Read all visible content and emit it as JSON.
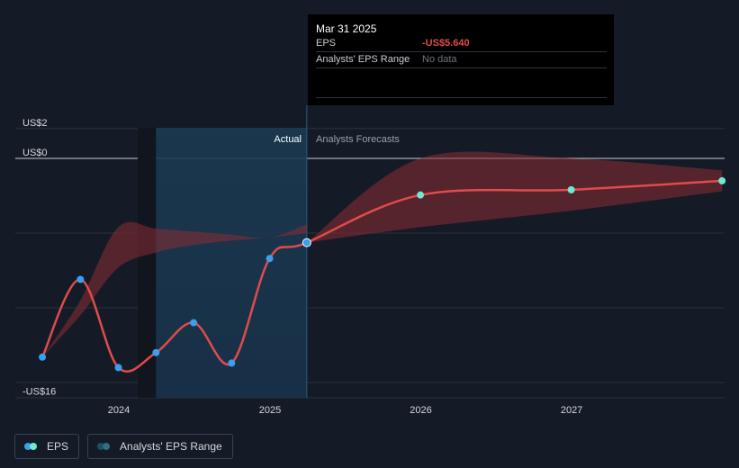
{
  "chart_data": {
    "type": "line",
    "y_axis": {
      "ylim": [
        -16,
        2
      ],
      "tick_labels": [
        {
          "value": 2,
          "label": "US$2"
        },
        {
          "value": 0,
          "label": "US$0"
        },
        {
          "value": -16,
          "label": "-US$16"
        }
      ],
      "gridlines": [
        2,
        0,
        -5,
        -10,
        -15
      ]
    },
    "x_axis": {
      "xlim": [
        "2023-07-01",
        "2027-12-31"
      ],
      "tick_labels": [
        {
          "value": "2024-01-01",
          "label": "2024"
        },
        {
          "value": "2025-01-01",
          "label": "2025"
        },
        {
          "value": "2026-01-01",
          "label": "2026"
        },
        {
          "value": "2027-01-01",
          "label": "2027"
        }
      ]
    },
    "regions": {
      "actual_label": "Actual",
      "forecast_label": "Analysts Forecasts",
      "highlight_start": "2024-03-31",
      "divider_date": "2025-03-31"
    },
    "series": [
      {
        "name": "EPS",
        "color": "#e04b4b",
        "points": [
          {
            "date": "2023-06-30",
            "value": -13.3,
            "kind": "actual"
          },
          {
            "date": "2023-09-30",
            "value": -8.1,
            "kind": "actual"
          },
          {
            "date": "2023-12-31",
            "value": -14.0,
            "kind": "actual"
          },
          {
            "date": "2024-03-31",
            "value": -13.0,
            "kind": "actual"
          },
          {
            "date": "2024-06-30",
            "value": -11.0,
            "kind": "actual"
          },
          {
            "date": "2024-09-30",
            "value": -13.7,
            "kind": "actual"
          },
          {
            "date": "2024-12-31",
            "value": -6.7,
            "kind": "actual"
          },
          {
            "date": "2025-03-31",
            "value": -5.64,
            "kind": "actual"
          },
          {
            "date": "2025-12-31",
            "value": -2.45,
            "kind": "forecast"
          },
          {
            "date": "2026-12-31",
            "value": -2.1,
            "kind": "forecast"
          },
          {
            "date": "2027-12-31",
            "value": -1.5,
            "kind": "forecast"
          }
        ]
      },
      {
        "name": "Analysts' EPS Range",
        "color": "#8b2b33",
        "bands": [
          {
            "upper": [
              {
                "date": "2023-06-30",
                "value": -13.3
              },
              {
                "date": "2023-09-30",
                "value": -9.5
              },
              {
                "date": "2023-12-31",
                "value": -4.6
              },
              {
                "date": "2024-03-31",
                "value": -4.7
              },
              {
                "date": "2024-06-30",
                "value": -4.9
              },
              {
                "date": "2024-09-30",
                "value": -5.1
              },
              {
                "date": "2024-12-31",
                "value": -5.3
              },
              {
                "date": "2025-03-31",
                "value": -4.4
              }
            ],
            "lower": [
              {
                "date": "2023-06-30",
                "value": -13.3
              },
              {
                "date": "2023-09-30",
                "value": -10.5
              },
              {
                "date": "2023-12-31",
                "value": -7.3
              },
              {
                "date": "2024-03-31",
                "value": -6.3
              },
              {
                "date": "2024-06-30",
                "value": -5.8
              },
              {
                "date": "2024-09-30",
                "value": -5.5
              },
              {
                "date": "2024-12-31",
                "value": -5.3
              },
              {
                "date": "2025-03-31",
                "value": -5.0
              }
            ]
          },
          {
            "upper": [
              {
                "date": "2025-03-31",
                "value": -5.64
              },
              {
                "date": "2025-12-31",
                "value": 0.0
              },
              {
                "date": "2026-12-31",
                "value": 0.0
              },
              {
                "date": "2027-12-31",
                "value": -0.8
              }
            ],
            "lower": [
              {
                "date": "2025-03-31",
                "value": -5.64
              },
              {
                "date": "2025-12-31",
                "value": -4.6
              },
              {
                "date": "2026-12-31",
                "value": -3.5
              },
              {
                "date": "2027-12-31",
                "value": -2.2
              }
            ]
          }
        ]
      }
    ],
    "legend": {
      "placement": "bottom-left",
      "items": [
        {
          "label": "EPS",
          "colors": [
            "#39a0ef",
            "#6fe8cf"
          ]
        },
        {
          "label": "Analysts' EPS Range",
          "colors": [
            "#1e4f64",
            "#2d6f7a"
          ]
        }
      ]
    }
  },
  "tooltip": {
    "date": "Mar 31 2025",
    "rows": [
      {
        "label": "EPS",
        "value": "-US$5.640"
      },
      {
        "label": "Analysts' EPS Range",
        "value": "No data"
      }
    ]
  },
  "colors": {
    "background": "#151b26",
    "actual_marker": "#39a0ef",
    "forecast_marker": "#6fe8cf",
    "line": "#e04b4b",
    "negative_value": "#e04b4b"
  }
}
